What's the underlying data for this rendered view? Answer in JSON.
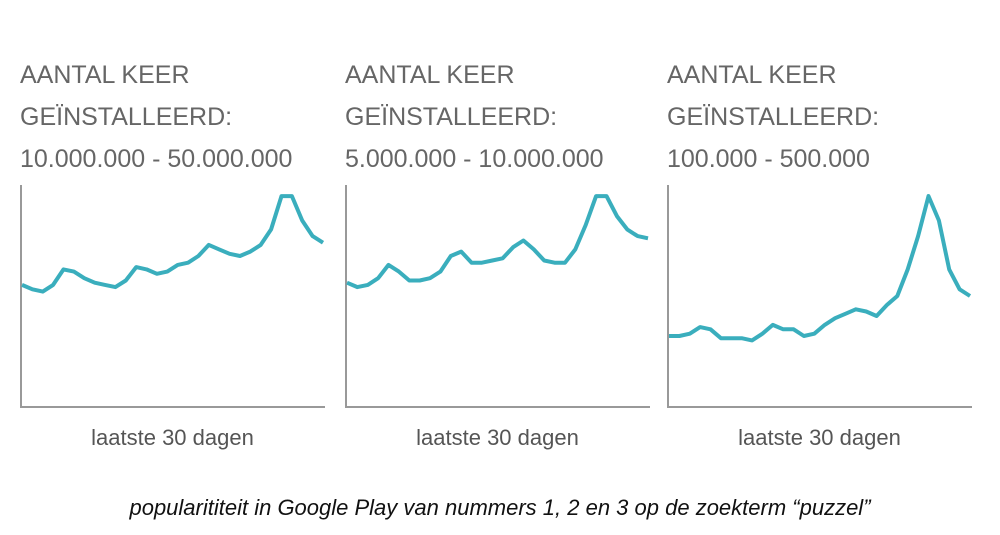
{
  "chart_data": [
    {
      "type": "line",
      "title": "AANTAL KEER GEÏNSTALLEERD: 10.000.000 - 50.000.000",
      "xlabel": "laatste 30 dagen",
      "color": "#3aaebd",
      "ylim": [
        0,
        100
      ],
      "values": [
        55,
        53,
        52,
        55,
        62,
        61,
        58,
        56,
        55,
        54,
        57,
        63,
        62,
        60,
        61,
        64,
        65,
        68,
        73,
        71,
        69,
        68,
        70,
        73,
        80,
        95,
        95,
        84,
        77,
        74
      ]
    },
    {
      "type": "line",
      "title": "AANTAL KEER GEÏNSTALLEERD: 5.000.000 - 10.000.000",
      "xlabel": "laatste 30 dagen",
      "color": "#3aaebd",
      "ylim": [
        0,
        100
      ],
      "values": [
        56,
        54,
        55,
        58,
        64,
        61,
        57,
        57,
        58,
        61,
        68,
        70,
        65,
        65,
        66,
        67,
        72,
        75,
        71,
        66,
        65,
        65,
        71,
        82,
        95,
        95,
        86,
        80,
        77,
        76
      ]
    },
    {
      "type": "line",
      "title": "AANTAL KEER GEÏNSTALLEERD: 100.000 - 500.000",
      "xlabel": "laatste 30 dagen",
      "color": "#3aaebd",
      "ylim": [
        0,
        100
      ],
      "values": [
        32,
        32,
        33,
        36,
        35,
        31,
        31,
        31,
        30,
        33,
        37,
        35,
        35,
        32,
        33,
        37,
        40,
        42,
        44,
        43,
        41,
        46,
        50,
        62,
        77,
        95,
        84,
        62,
        53,
        50
      ]
    }
  ],
  "caption": "popularititeit in Google Play van nummers 1, 2 en 3 op de zoekterm “puzzel”"
}
